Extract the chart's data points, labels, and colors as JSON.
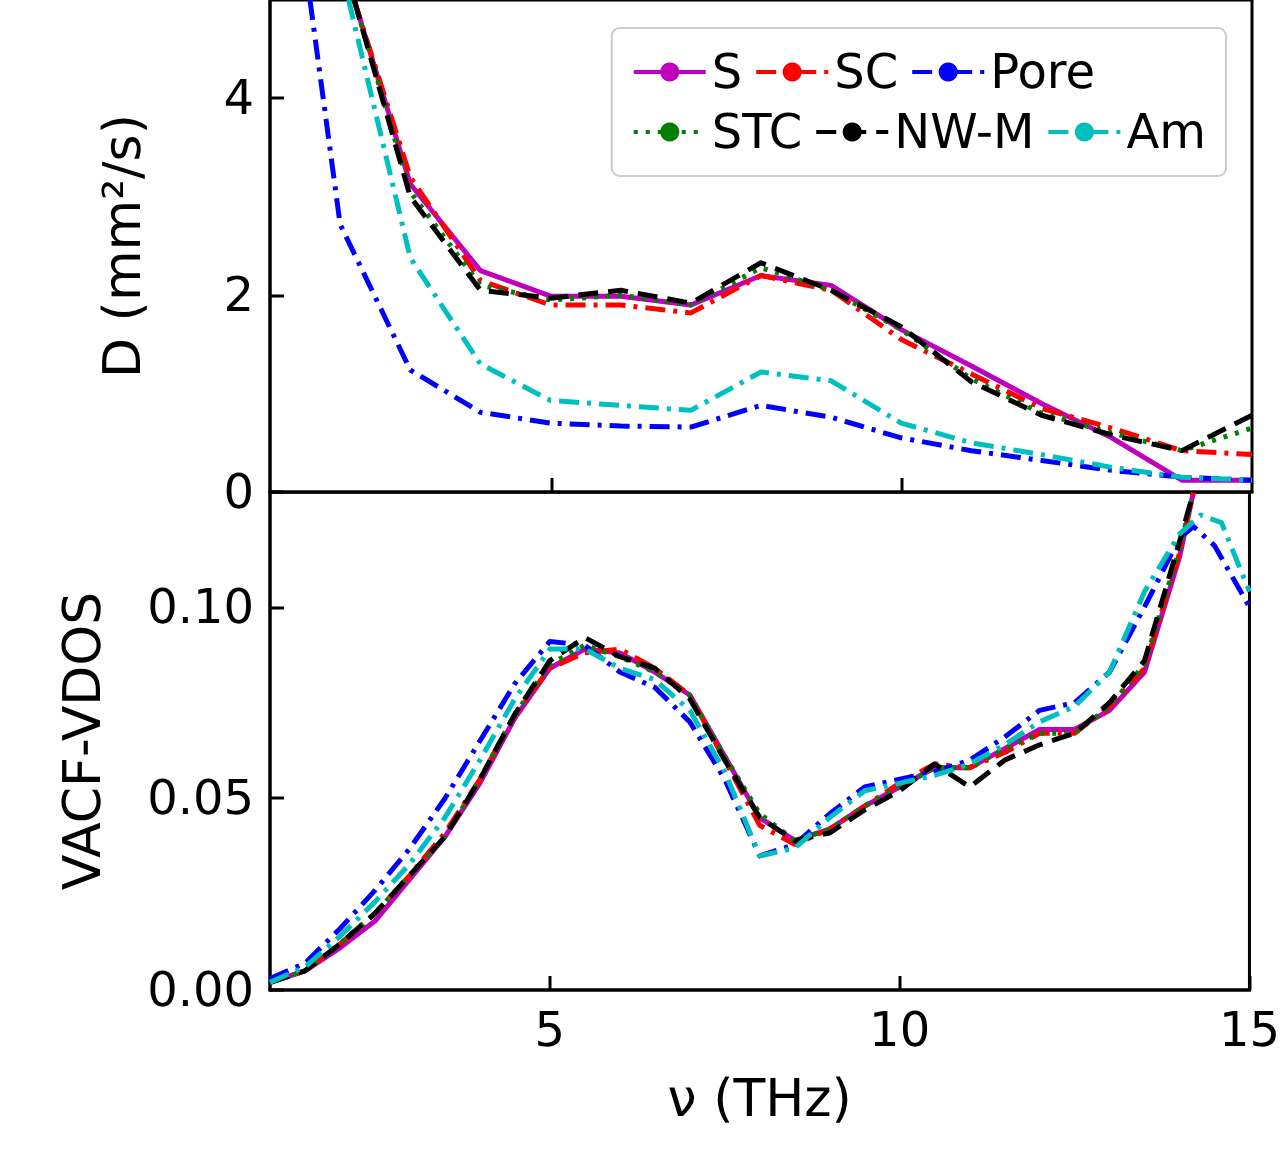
{
  "chart_data": [
    {
      "type": "line",
      "ylabel": "D (mm²/s)",
      "xlim": [
        1,
        15
      ],
      "ylim": [
        0,
        5
      ],
      "xticks": [
        {
          "value": 5,
          "label": null
        },
        {
          "value": 10,
          "label": null
        }
      ],
      "yticks": [
        0,
        2,
        4
      ],
      "tick_labels": "y",
      "grid": false,
      "legend": "top right",
      "marker": "none",
      "series": [
        {
          "name": "S",
          "color": "#bf00bf",
          "line_style": "solid",
          "x": [
            2.2,
            3,
            4,
            5,
            6,
            7,
            8,
            9,
            10,
            11,
            12,
            13,
            14,
            15
          ],
          "values": [
            5,
            3.13,
            2.25,
            1.99,
            1.99,
            1.9,
            2.2,
            2.1,
            1.65,
            1.28,
            0.9,
            0.55,
            0.12,
            0.12
          ]
        },
        {
          "name": "SC",
          "color": "#ff0000",
          "line_style": "dashdot",
          "x": [
            2.2,
            3,
            4,
            5,
            6,
            7,
            8,
            9,
            10,
            11,
            12,
            13,
            14,
            15
          ],
          "values": [
            5,
            3.2,
            2.15,
            1.9,
            1.9,
            1.82,
            2.2,
            2.05,
            1.55,
            1.2,
            0.85,
            0.65,
            0.42,
            0.38
          ]
        },
        {
          "name": "Pore",
          "color": "#0000ff",
          "line_style": "dashdot",
          "x": [
            1.57,
            2,
            3,
            4,
            5,
            6,
            7,
            8,
            9,
            10,
            11,
            12,
            13,
            14,
            15
          ],
          "values": [
            5,
            2.72,
            1.24,
            0.81,
            0.7,
            0.67,
            0.66,
            0.88,
            0.76,
            0.55,
            0.42,
            0.32,
            0.22,
            0.15,
            0.12
          ]
        },
        {
          "name": "STC",
          "color": "#008000",
          "line_style": "dotted",
          "x": [
            2.2,
            3,
            4,
            5,
            6,
            7,
            8,
            9,
            10,
            11,
            12,
            13,
            14,
            15
          ],
          "values": [
            5,
            3.05,
            2.1,
            1.95,
            2.0,
            1.9,
            2.28,
            2.05,
            1.65,
            1.15,
            0.8,
            0.6,
            0.42,
            0.65
          ]
        },
        {
          "name": "NW-M",
          "color": "#000000",
          "line_style": "dashed",
          "x": [
            2.2,
            3,
            4,
            5,
            6,
            7,
            8,
            9,
            10,
            11,
            12,
            13,
            14,
            15
          ],
          "values": [
            5,
            3.0,
            2.05,
            1.97,
            2.05,
            1.92,
            2.33,
            2.05,
            1.68,
            1.12,
            0.78,
            0.58,
            0.42,
            0.78
          ]
        },
        {
          "name": "Am",
          "color": "#00bfbf",
          "line_style": "dashdot",
          "x": [
            2.12,
            3,
            4,
            5,
            6,
            7,
            8,
            9,
            10,
            11,
            12,
            13,
            14,
            15
          ],
          "values": [
            5,
            2.38,
            1.3,
            0.93,
            0.88,
            0.83,
            1.22,
            1.13,
            0.7,
            0.5,
            0.38,
            0.25,
            0.15,
            0.12
          ]
        }
      ]
    },
    {
      "type": "line",
      "xlabel": "ν (THz)",
      "ylabel": "VACF-VDOS",
      "xlim": [
        1,
        15
      ],
      "ylim": [
        0,
        0.13
      ],
      "xticks": [
        5,
        10,
        15
      ],
      "yticks": [
        {
          "value": 0,
          "label": "0.00"
        },
        {
          "value": 0.05,
          "label": "0.05"
        },
        {
          "value": 0.1,
          "label": "0.10"
        }
      ],
      "grid": false,
      "legend": false,
      "marker": "none",
      "series": [
        {
          "color": "#bf00bf",
          "line_style": "solid",
          "x": [
            1,
            1.5,
            2,
            2.5,
            3,
            3.5,
            4,
            4.5,
            5,
            5.5,
            6,
            6.5,
            7,
            7.5,
            8,
            8.5,
            9,
            9.5,
            10,
            10.5,
            11,
            11.5,
            12,
            12.5,
            13,
            13.5,
            14,
            14.2
          ],
          "values": [
            0.002,
            0.005,
            0.011,
            0.018,
            0.029,
            0.04,
            0.054,
            0.071,
            0.084,
            0.089,
            0.088,
            0.083,
            0.077,
            0.061,
            0.045,
            0.039,
            0.042,
            0.048,
            0.053,
            0.058,
            0.058,
            0.063,
            0.068,
            0.068,
            0.073,
            0.083,
            0.113,
            0.13
          ]
        },
        {
          "color": "#ff0000",
          "line_style": "dashdot",
          "x": [
            1,
            1.5,
            2,
            2.5,
            3,
            3.5,
            4,
            4.5,
            5,
            5.5,
            6,
            6.5,
            7,
            7.5,
            8,
            8.5,
            9,
            9.5,
            10,
            10.5,
            11,
            11.5,
            12,
            12.5,
            13,
            13.5,
            14,
            14.2
          ],
          "values": [
            0.002,
            0.005,
            0.012,
            0.02,
            0.03,
            0.041,
            0.055,
            0.072,
            0.084,
            0.088,
            0.089,
            0.084,
            0.077,
            0.06,
            0.043,
            0.038,
            0.042,
            0.048,
            0.054,
            0.059,
            0.058,
            0.062,
            0.067,
            0.067,
            0.074,
            0.084,
            0.114,
            0.13
          ]
        },
        {
          "color": "#0000ff",
          "line_style": "dashdot",
          "x": [
            1,
            1.5,
            2,
            2.5,
            3,
            3.5,
            4,
            4.5,
            5,
            5.5,
            6,
            6.5,
            7,
            7.5,
            8,
            8.5,
            9,
            9.5,
            10,
            10.5,
            11,
            11.5,
            12,
            12.5,
            13,
            13.5,
            14,
            14.2,
            14.5,
            15
          ],
          "values": [
            0.003,
            0.007,
            0.016,
            0.026,
            0.037,
            0.05,
            0.065,
            0.08,
            0.091,
            0.09,
            0.083,
            0.079,
            0.07,
            0.055,
            0.035,
            0.038,
            0.046,
            0.053,
            0.055,
            0.057,
            0.06,
            0.066,
            0.073,
            0.075,
            0.083,
            0.1,
            0.118,
            0.121,
            0.116,
            0.1
          ]
        },
        {
          "color": "#008000",
          "line_style": "dotted",
          "x": [
            1,
            1.5,
            2,
            2.5,
            3,
            3.5,
            4,
            4.5,
            5,
            5.5,
            6,
            6.5,
            7,
            7.5,
            8,
            8.5,
            9,
            9.5,
            10,
            10.5,
            11,
            11.5,
            12,
            12.5,
            13,
            13.5,
            14,
            14.2
          ],
          "values": [
            0.002,
            0.005,
            0.012,
            0.02,
            0.03,
            0.04,
            0.055,
            0.072,
            0.085,
            0.09,
            0.087,
            0.083,
            0.077,
            0.061,
            0.046,
            0.039,
            0.042,
            0.048,
            0.053,
            0.058,
            0.058,
            0.063,
            0.067,
            0.067,
            0.074,
            0.085,
            0.115,
            0.13
          ]
        },
        {
          "color": "#000000",
          "line_style": "dashed",
          "x": [
            1,
            1.5,
            2,
            2.5,
            3,
            3.5,
            4,
            4.5,
            5,
            5.5,
            6,
            6.5,
            7,
            7.5,
            8,
            8.5,
            9,
            9.5,
            10,
            10.5,
            11,
            11.5,
            12,
            12.5,
            13,
            13.5,
            14,
            14.2
          ],
          "values": [
            0.002,
            0.005,
            0.012,
            0.02,
            0.03,
            0.04,
            0.055,
            0.072,
            0.086,
            0.092,
            0.087,
            0.084,
            0.076,
            0.06,
            0.045,
            0.039,
            0.041,
            0.047,
            0.052,
            0.059,
            0.053,
            0.06,
            0.064,
            0.067,
            0.075,
            0.086,
            0.117,
            0.13
          ]
        },
        {
          "color": "#00bfbf",
          "line_style": "dashdot",
          "x": [
            1,
            1.5,
            2,
            2.5,
            3,
            3.5,
            4,
            4.5,
            5,
            5.5,
            6,
            6.5,
            7,
            7.5,
            8,
            8.5,
            9,
            9.5,
            10,
            10.5,
            11,
            11.5,
            12,
            12.5,
            13,
            13.5,
            14,
            14.3,
            14.6,
            15
          ],
          "values": [
            0.002,
            0.006,
            0.014,
            0.023,
            0.033,
            0.045,
            0.06,
            0.076,
            0.089,
            0.089,
            0.084,
            0.081,
            0.073,
            0.057,
            0.035,
            0.037,
            0.045,
            0.052,
            0.054,
            0.056,
            0.059,
            0.064,
            0.07,
            0.074,
            0.083,
            0.104,
            0.119,
            0.124,
            0.122,
            0.104
          ]
        }
      ]
    }
  ]
}
